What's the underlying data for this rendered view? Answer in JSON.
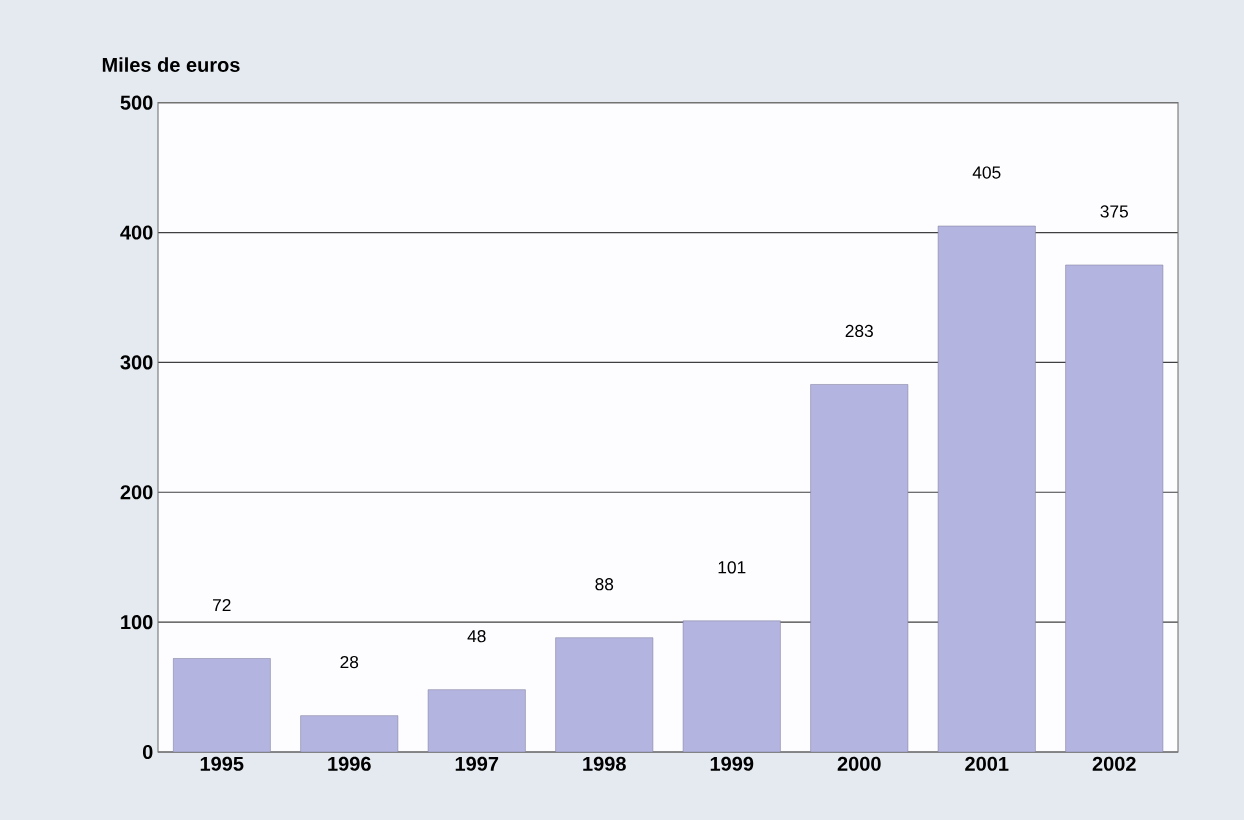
{
  "chart_data": {
    "type": "bar",
    "ylabel": "Miles de euros",
    "categories": [
      "1995",
      "1996",
      "1997",
      "1998",
      "1999",
      "2000",
      "2001",
      "2002"
    ],
    "values": [
      72,
      28,
      48,
      88,
      101,
      283,
      405,
      375
    ],
    "color": "#b4b4e0",
    "ylim": [
      0,
      500
    ],
    "yticks": [
      0,
      100,
      200,
      300,
      400,
      500
    ],
    "grid": "y",
    "data_labels": true
  }
}
